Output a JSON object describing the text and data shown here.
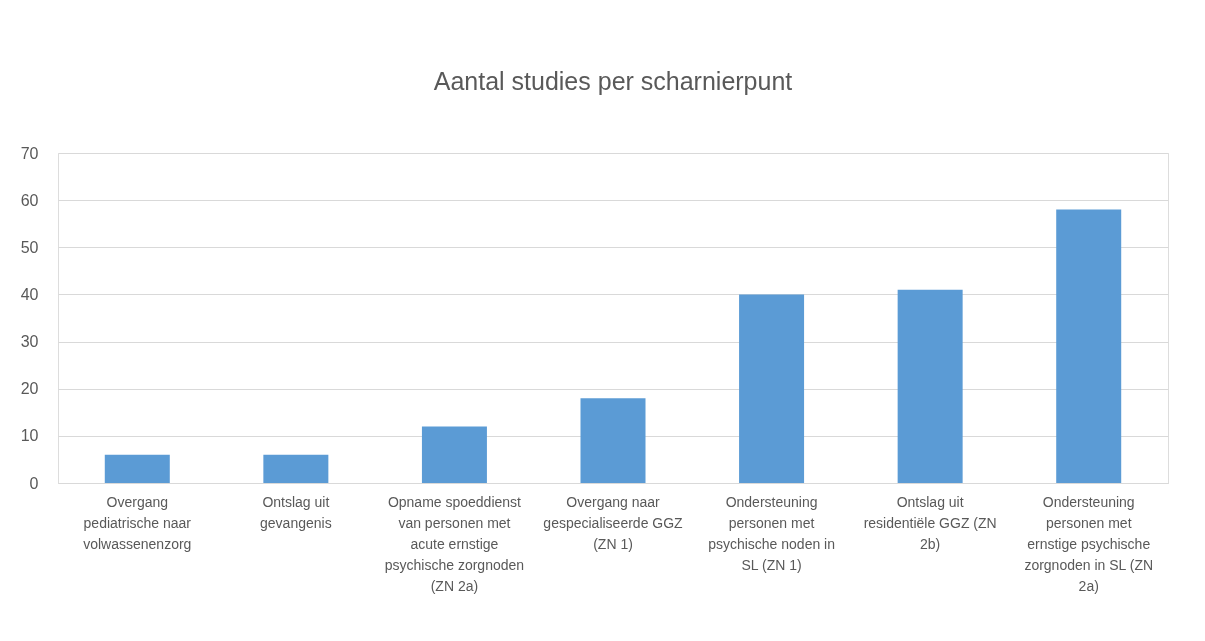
{
  "chart_data": {
    "type": "bar",
    "title": "Aantal studies per scharnierpunt",
    "categories": [
      "Overgang pediatrische naar volwassenenzorg",
      "Ontslag uit gevangenis",
      "Opname spoeddienst van personen met acute ernstige psychische zorgnoden (ZN 2a)",
      "Overgang naar gespecialiseerde GGZ (ZN 1)",
      "Ondersteuning personen met psychische noden in SL (ZN 1)",
      "Ontslag uit residentiële GGZ (ZN 2b)",
      "Ondersteuning personen met ernstige psychische zorgnoden in SL (ZN 2a)"
    ],
    "values": [
      6,
      6,
      12,
      18,
      40,
      41,
      58
    ],
    "color": "#5b9bd5",
    "ylim": [
      0,
      70
    ],
    "yticks": [
      0,
      10,
      20,
      30,
      40,
      50,
      60,
      70
    ],
    "grid": "y"
  }
}
